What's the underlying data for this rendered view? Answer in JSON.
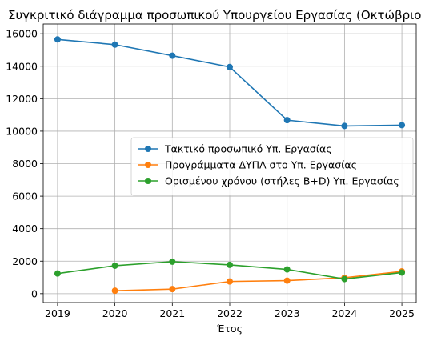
{
  "chart_data": {
    "type": "line",
    "title": "Συγκριτικό διάγραμμα προσωπικού Υπουργείου Εργασίας (Οκτώβριο",
    "xlabel": "Έτος",
    "ylabel": "",
    "x": [
      2019,
      2020,
      2021,
      2022,
      2023,
      2024,
      2025
    ],
    "xlim": [
      2018.75,
      2025.25
    ],
    "ylim": [
      -550,
      16600
    ],
    "yticks": [
      0,
      2000,
      4000,
      6000,
      8000,
      10000,
      12000,
      14000,
      16000
    ],
    "grid": true,
    "legend_position": "center-right",
    "series": [
      {
        "name": "Τακτικό προσωπικό Υπ. Εργασίας",
        "color": "#1f77b4",
        "values": [
          15650,
          15330,
          14650,
          13950,
          10680,
          10320,
          10370
        ]
      },
      {
        "name": "Προγράμματα ΔΥΠΑ στο Υπ. Εργασίας",
        "color": "#ff7f0e",
        "values": [
          null,
          180,
          280,
          750,
          800,
          980,
          1370
        ]
      },
      {
        "name": "Ορισμένου χρόνου (στήλες Β+D) Υπ. Εργασίας",
        "color": "#2ca02c",
        "values": [
          1240,
          1720,
          1970,
          1770,
          1490,
          900,
          1300
        ]
      }
    ]
  }
}
